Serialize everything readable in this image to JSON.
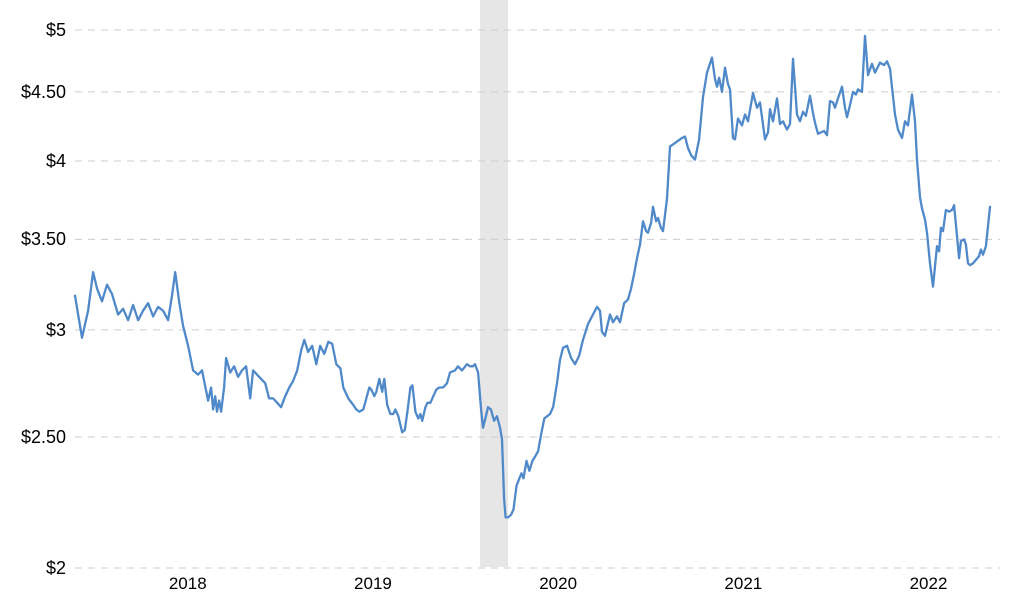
{
  "chart_data": {
    "type": "line",
    "title": "",
    "grid": {
      "dashed": true,
      "color": "#cccccc",
      "dash_pattern": "7,6"
    },
    "background_color": "#ffffff",
    "line_color": "#5089c9",
    "line_width": 2.3,
    "y_axis": {
      "scale": "log",
      "min": 2,
      "max": 5,
      "ticks": [
        5,
        4.5,
        4,
        3.5,
        3,
        2.5,
        2
      ],
      "tick_labels": [
        "$5",
        "$4.50",
        "$4",
        "$3.50",
        "$3",
        "$2.50",
        "$2"
      ]
    },
    "x_axis": {
      "min": 2017.891,
      "max": 2022.886,
      "ticks": [
        2018.5,
        2019.5,
        2020.5,
        2021.5,
        2022.5
      ],
      "tick_labels": [
        "2018",
        "2019",
        "2020",
        "2021",
        "2022"
      ]
    },
    "recession_band": {
      "start": 2020.078,
      "end": 2020.229,
      "color": "#e6e6e6"
    },
    "series": [
      {
        "name": "price",
        "points": [
          [
            2017.891,
            3.18
          ],
          [
            2017.929,
            2.96
          ],
          [
            2017.962,
            3.1
          ],
          [
            2017.989,
            3.31
          ],
          [
            2018.01,
            3.22
          ],
          [
            2018.037,
            3.15
          ],
          [
            2018.064,
            3.24
          ],
          [
            2018.091,
            3.19
          ],
          [
            2018.124,
            3.08
          ],
          [
            2018.151,
            3.11
          ],
          [
            2018.178,
            3.05
          ],
          [
            2018.205,
            3.13
          ],
          [
            2018.232,
            3.05
          ],
          [
            2018.259,
            3.1
          ],
          [
            2018.286,
            3.14
          ],
          [
            2018.313,
            3.07
          ],
          [
            2018.34,
            3.12
          ],
          [
            2018.367,
            3.1
          ],
          [
            2018.394,
            3.05
          ],
          [
            2018.415,
            3.18
          ],
          [
            2018.432,
            3.31
          ],
          [
            2018.453,
            3.15
          ],
          [
            2018.475,
            3.02
          ],
          [
            2018.502,
            2.92
          ],
          [
            2018.529,
            2.8
          ],
          [
            2018.556,
            2.78
          ],
          [
            2018.577,
            2.8
          ],
          [
            2018.61,
            2.66
          ],
          [
            2018.626,
            2.72
          ],
          [
            2018.637,
            2.62
          ],
          [
            2018.648,
            2.68
          ],
          [
            2018.658,
            2.61
          ],
          [
            2018.669,
            2.66
          ],
          [
            2018.68,
            2.61
          ],
          [
            2018.696,
            2.72
          ],
          [
            2018.707,
            2.86
          ],
          [
            2018.729,
            2.79
          ],
          [
            2018.75,
            2.82
          ],
          [
            2018.772,
            2.77
          ],
          [
            2018.793,
            2.8
          ],
          [
            2018.815,
            2.82
          ],
          [
            2018.837,
            2.67
          ],
          [
            2018.853,
            2.8
          ],
          [
            2018.874,
            2.78
          ],
          [
            2018.896,
            2.76
          ],
          [
            2018.918,
            2.74
          ],
          [
            2018.939,
            2.67
          ],
          [
            2018.961,
            2.67
          ],
          [
            2018.983,
            2.65
          ],
          [
            2019.004,
            2.63
          ],
          [
            2019.026,
            2.68
          ],
          [
            2019.048,
            2.72
          ],
          [
            2019.069,
            2.75
          ],
          [
            2019.091,
            2.8
          ],
          [
            2019.113,
            2.9
          ],
          [
            2019.129,
            2.95
          ],
          [
            2019.15,
            2.89
          ],
          [
            2019.172,
            2.92
          ],
          [
            2019.194,
            2.83
          ],
          [
            2019.215,
            2.92
          ],
          [
            2019.237,
            2.88
          ],
          [
            2019.259,
            2.94
          ],
          [
            2019.28,
            2.93
          ],
          [
            2019.302,
            2.83
          ],
          [
            2019.324,
            2.81
          ],
          [
            2019.34,
            2.72
          ],
          [
            2019.367,
            2.67
          ],
          [
            2019.394,
            2.64
          ],
          [
            2019.41,
            2.62
          ],
          [
            2019.426,
            2.61
          ],
          [
            2019.448,
            2.62
          ],
          [
            2019.464,
            2.67
          ],
          [
            2019.48,
            2.72
          ],
          [
            2019.491,
            2.71
          ],
          [
            2019.507,
            2.68
          ],
          [
            2019.518,
            2.7
          ],
          [
            2019.534,
            2.76
          ],
          [
            2019.55,
            2.7
          ],
          [
            2019.561,
            2.76
          ],
          [
            2019.577,
            2.64
          ],
          [
            2019.594,
            2.6
          ],
          [
            2019.61,
            2.6
          ],
          [
            2019.621,
            2.62
          ],
          [
            2019.637,
            2.59
          ],
          [
            2019.658,
            2.52
          ],
          [
            2019.672,
            2.53
          ],
          [
            2019.686,
            2.61
          ],
          [
            2019.702,
            2.72
          ],
          [
            2019.713,
            2.73
          ],
          [
            2019.729,
            2.61
          ],
          [
            2019.745,
            2.58
          ],
          [
            2019.756,
            2.6
          ],
          [
            2019.766,
            2.57
          ],
          [
            2019.783,
            2.63
          ],
          [
            2019.794,
            2.65
          ],
          [
            2019.81,
            2.65
          ],
          [
            2019.826,
            2.68
          ],
          [
            2019.842,
            2.71
          ],
          [
            2019.858,
            2.72
          ],
          [
            2019.879,
            2.72
          ],
          [
            2019.9,
            2.74
          ],
          [
            2019.916,
            2.79
          ],
          [
            2019.943,
            2.8
          ],
          [
            2019.959,
            2.82
          ],
          [
            2019.981,
            2.8
          ],
          [
            2020.008,
            2.83
          ],
          [
            2020.024,
            2.82
          ],
          [
            2020.04,
            2.82
          ],
          [
            2020.051,
            2.83
          ],
          [
            2020.068,
            2.79
          ],
          [
            2020.084,
            2.62
          ],
          [
            2020.094,
            2.54
          ],
          [
            2020.11,
            2.59
          ],
          [
            2020.121,
            2.63
          ],
          [
            2020.137,
            2.62
          ],
          [
            2020.154,
            2.57
          ],
          [
            2020.17,
            2.59
          ],
          [
            2020.186,
            2.54
          ],
          [
            2020.197,
            2.49
          ],
          [
            2020.208,
            2.25
          ],
          [
            2020.216,
            2.18
          ],
          [
            2020.23,
            2.18
          ],
          [
            2020.246,
            2.19
          ],
          [
            2020.259,
            2.21
          ],
          [
            2020.275,
            2.3
          ],
          [
            2020.291,
            2.33
          ],
          [
            2020.302,
            2.35
          ],
          [
            2020.313,
            2.33
          ],
          [
            2020.329,
            2.4
          ],
          [
            2020.345,
            2.36
          ],
          [
            2020.361,
            2.4
          ],
          [
            2020.377,
            2.42
          ],
          [
            2020.392,
            2.44
          ],
          [
            2020.408,
            2.51
          ],
          [
            2020.425,
            2.58
          ],
          [
            2020.441,
            2.59
          ],
          [
            2020.456,
            2.6
          ],
          [
            2020.473,
            2.63
          ],
          [
            2020.494,
            2.74
          ],
          [
            2020.51,
            2.85
          ],
          [
            2020.526,
            2.91
          ],
          [
            2020.548,
            2.92
          ],
          [
            2020.57,
            2.86
          ],
          [
            2020.591,
            2.83
          ],
          [
            2020.613,
            2.87
          ],
          [
            2020.634,
            2.95
          ],
          [
            2020.661,
            3.03
          ],
          [
            2020.683,
            3.07
          ],
          [
            2020.71,
            3.12
          ],
          [
            2020.726,
            3.1
          ],
          [
            2020.737,
            2.99
          ],
          [
            2020.753,
            2.97
          ],
          [
            2020.78,
            3.08
          ],
          [
            2020.796,
            3.04
          ],
          [
            2020.818,
            3.07
          ],
          [
            2020.834,
            3.04
          ],
          [
            2020.856,
            3.14
          ],
          [
            2020.877,
            3.16
          ],
          [
            2020.894,
            3.22
          ],
          [
            2020.91,
            3.3
          ],
          [
            2020.926,
            3.39
          ],
          [
            2020.942,
            3.47
          ],
          [
            2020.958,
            3.61
          ],
          [
            2020.975,
            3.55
          ],
          [
            2020.985,
            3.54
          ],
          [
            2021.002,
            3.6
          ],
          [
            2021.012,
            3.7
          ],
          [
            2021.029,
            3.61
          ],
          [
            2021.039,
            3.63
          ],
          [
            2021.055,
            3.57
          ],
          [
            2021.066,
            3.55
          ],
          [
            2021.088,
            3.75
          ],
          [
            2021.104,
            4.1
          ],
          [
            2021.126,
            4.12
          ],
          [
            2021.147,
            4.14
          ],
          [
            2021.169,
            4.16
          ],
          [
            2021.185,
            4.17
          ],
          [
            2021.201,
            4.09
          ],
          [
            2021.218,
            4.04
          ],
          [
            2021.239,
            4.01
          ],
          [
            2021.261,
            4.15
          ],
          [
            2021.282,
            4.46
          ],
          [
            2021.304,
            4.65
          ],
          [
            2021.331,
            4.77
          ],
          [
            2021.347,
            4.6
          ],
          [
            2021.358,
            4.54
          ],
          [
            2021.369,
            4.61
          ],
          [
            2021.385,
            4.5
          ],
          [
            2021.401,
            4.69
          ],
          [
            2021.417,
            4.56
          ],
          [
            2021.428,
            4.52
          ],
          [
            2021.444,
            4.16
          ],
          [
            2021.455,
            4.15
          ],
          [
            2021.471,
            4.3
          ],
          [
            2021.493,
            4.25
          ],
          [
            2021.509,
            4.33
          ],
          [
            2021.525,
            4.28
          ],
          [
            2021.541,
            4.4
          ],
          [
            2021.552,
            4.49
          ],
          [
            2021.574,
            4.38
          ],
          [
            2021.59,
            4.42
          ],
          [
            2021.617,
            4.15
          ],
          [
            2021.633,
            4.2
          ],
          [
            2021.644,
            4.37
          ],
          [
            2021.66,
            4.28
          ],
          [
            2021.682,
            4.45
          ],
          [
            2021.698,
            4.26
          ],
          [
            2021.714,
            4.28
          ],
          [
            2021.736,
            4.22
          ],
          [
            2021.752,
            4.26
          ],
          [
            2021.768,
            4.76
          ],
          [
            2021.79,
            4.33
          ],
          [
            2021.806,
            4.28
          ],
          [
            2021.822,
            4.35
          ],
          [
            2021.838,
            4.32
          ],
          [
            2021.86,
            4.47
          ],
          [
            2021.876,
            4.34
          ],
          [
            2021.887,
            4.27
          ],
          [
            2021.903,
            4.19
          ],
          [
            2021.919,
            4.2
          ],
          [
            2021.936,
            4.21
          ],
          [
            2021.952,
            4.18
          ],
          [
            2021.968,
            4.43
          ],
          [
            2021.984,
            4.42
          ],
          [
            2021.995,
            4.38
          ],
          [
            2022.011,
            4.45
          ],
          [
            2022.033,
            4.54
          ],
          [
            2022.049,
            4.38
          ],
          [
            2022.06,
            4.31
          ],
          [
            2022.076,
            4.4
          ],
          [
            2022.092,
            4.5
          ],
          [
            2022.108,
            4.48
          ],
          [
            2022.119,
            4.52
          ],
          [
            2022.141,
            4.5
          ],
          [
            2022.157,
            4.95
          ],
          [
            2022.173,
            4.63
          ],
          [
            2022.195,
            4.72
          ],
          [
            2022.211,
            4.65
          ],
          [
            2022.238,
            4.73
          ],
          [
            2022.26,
            4.71
          ],
          [
            2022.276,
            4.74
          ],
          [
            2022.292,
            4.68
          ],
          [
            2022.319,
            4.33
          ],
          [
            2022.335,
            4.22
          ],
          [
            2022.357,
            4.16
          ],
          [
            2022.373,
            4.28
          ],
          [
            2022.389,
            4.25
          ],
          [
            2022.411,
            4.48
          ],
          [
            2022.427,
            4.28
          ],
          [
            2022.438,
            4.01
          ],
          [
            2022.454,
            3.76
          ],
          [
            2022.465,
            3.69
          ],
          [
            2022.481,
            3.62
          ],
          [
            2022.492,
            3.54
          ],
          [
            2022.508,
            3.36
          ],
          [
            2022.524,
            3.23
          ],
          [
            2022.546,
            3.46
          ],
          [
            2022.557,
            3.43
          ],
          [
            2022.567,
            3.57
          ],
          [
            2022.578,
            3.55
          ],
          [
            2022.594,
            3.68
          ],
          [
            2022.611,
            3.67
          ],
          [
            2022.627,
            3.68
          ],
          [
            2022.638,
            3.71
          ],
          [
            2022.654,
            3.52
          ],
          [
            2022.665,
            3.39
          ],
          [
            2022.675,
            3.49
          ],
          [
            2022.692,
            3.5
          ],
          [
            2022.702,
            3.47
          ],
          [
            2022.713,
            3.36
          ],
          [
            2022.724,
            3.35
          ],
          [
            2022.74,
            3.36
          ],
          [
            2022.756,
            3.38
          ],
          [
            2022.772,
            3.4
          ],
          [
            2022.783,
            3.44
          ],
          [
            2022.794,
            3.41
          ],
          [
            2022.81,
            3.46
          ],
          [
            2022.821,
            3.58
          ],
          [
            2022.832,
            3.7
          ]
        ]
      }
    ]
  }
}
